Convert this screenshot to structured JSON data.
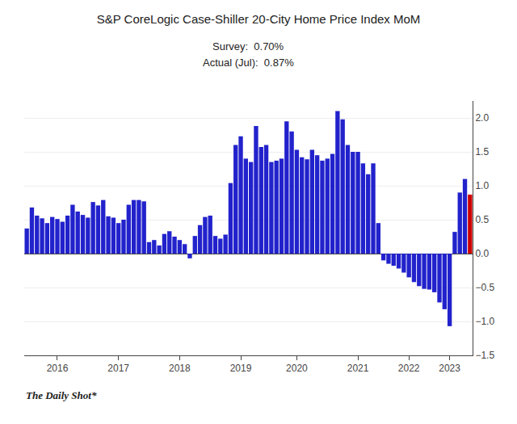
{
  "chart_data": {
    "type": "bar",
    "title": "S&P CoreLogic Case-Shiller 20-City Home Price Index MoM",
    "subtitle": [
      "Survey:  0.70%",
      "Actual (Jul):  0.87%"
    ],
    "annotations": [
      "The Daily Shot*"
    ],
    "categories": [
      null,
      null,
      null,
      null,
      null,
      null,
      "2016",
      null,
      null,
      null,
      null,
      null,
      null,
      null,
      null,
      null,
      null,
      null,
      "2017",
      null,
      null,
      null,
      null,
      null,
      null,
      null,
      null,
      null,
      null,
      null,
      "2018",
      null,
      null,
      null,
      null,
      null,
      null,
      null,
      null,
      null,
      null,
      null,
      "2019",
      null,
      null,
      null,
      null,
      null,
      null,
      null,
      null,
      null,
      null,
      "2020",
      null,
      null,
      null,
      null,
      null,
      null,
      null,
      null,
      null,
      null,
      null,
      "2021",
      null,
      null,
      null,
      null,
      null,
      null,
      null,
      null,
      null,
      "2022",
      null,
      null,
      null,
      null,
      null,
      null,
      null,
      "2023",
      null,
      null,
      null,
      null
    ],
    "values": [
      0.37,
      0.68,
      0.56,
      0.52,
      0.45,
      0.54,
      0.51,
      0.47,
      0.56,
      0.72,
      0.62,
      0.57,
      0.53,
      0.76,
      0.71,
      0.79,
      0.55,
      0.53,
      0.45,
      0.5,
      0.72,
      0.79,
      0.79,
      0.77,
      0.17,
      0.2,
      0.12,
      0.29,
      0.33,
      0.25,
      0.2,
      0.14,
      -0.07,
      0.26,
      0.42,
      0.54,
      0.56,
      0.26,
      0.22,
      0.28,
      1.04,
      1.6,
      1.73,
      1.4,
      1.35,
      1.88,
      1.57,
      1.6,
      1.35,
      1.37,
      1.4,
      1.95,
      1.8,
      1.53,
      1.42,
      1.39,
      1.53,
      1.45,
      1.37,
      1.4,
      1.47,
      2.1,
      1.98,
      1.6,
      1.5,
      1.5,
      1.33,
      1.17,
      1.33,
      0.45,
      -0.1,
      -0.15,
      -0.18,
      -0.22,
      -0.28,
      -0.35,
      -0.42,
      -0.48,
      -0.52,
      -0.53,
      -0.57,
      -0.72,
      -0.82,
      -1.07,
      0.32,
      0.9,
      1.1,
      0.87
    ],
    "colors": [
      "#2222CC",
      "#2222CC",
      "#2222CC",
      "#2222CC",
      "#2222CC",
      "#2222CC",
      "#2222CC",
      "#2222CC",
      "#2222CC",
      "#2222CC",
      "#2222CC",
      "#2222CC",
      "#2222CC",
      "#2222CC",
      "#2222CC",
      "#2222CC",
      "#2222CC",
      "#2222CC",
      "#2222CC",
      "#2222CC",
      "#2222CC",
      "#2222CC",
      "#2222CC",
      "#2222CC",
      "#2222CC",
      "#2222CC",
      "#2222CC",
      "#2222CC",
      "#2222CC",
      "#2222CC",
      "#2222CC",
      "#2222CC",
      "#2222CC",
      "#2222CC",
      "#2222CC",
      "#2222CC",
      "#2222CC",
      "#2222CC",
      "#2222CC",
      "#2222CC",
      "#2222CC",
      "#2222CC",
      "#2222CC",
      "#2222CC",
      "#2222CC",
      "#2222CC",
      "#2222CC",
      "#2222CC",
      "#2222CC",
      "#2222CC",
      "#2222CC",
      "#2222CC",
      "#2222CC",
      "#2222CC",
      "#2222CC",
      "#2222CC",
      "#2222CC",
      "#2222CC",
      "#2222CC",
      "#2222CC",
      "#2222CC",
      "#2222CC",
      "#2222CC",
      "#2222CC",
      "#2222CC",
      "#2222CC",
      "#2222CC",
      "#2222CC",
      "#2222CC",
      "#2222CC",
      "#2222CC",
      "#2222CC",
      "#2222CC",
      "#2222CC",
      "#2222CC",
      "#2222CC",
      "#2222CC",
      "#2222CC",
      "#2222CC",
      "#2222CC",
      "#2222CC",
      "#2222CC",
      "#2222CC",
      "#2222CC",
      "#2222CC",
      "#2222CC",
      "#2222CC",
      "#CC0000"
    ],
    "ylim": [
      -1.5,
      2.25
    ],
    "yticks": [
      {
        "value": -1.5,
        "label": "−1.5"
      },
      {
        "value": -1.0,
        "label": "−1.0"
      },
      {
        "value": -0.5,
        "label": "−0.5"
      },
      {
        "value": 0.0,
        "label": "0.0"
      },
      {
        "value": 0.5,
        "label": "0.5"
      },
      {
        "value": 1.0,
        "label": "1.0"
      },
      {
        "value": 1.5,
        "label": "1.5"
      },
      {
        "value": 2.0,
        "label": "2.0"
      }
    ],
    "grid": true
  }
}
